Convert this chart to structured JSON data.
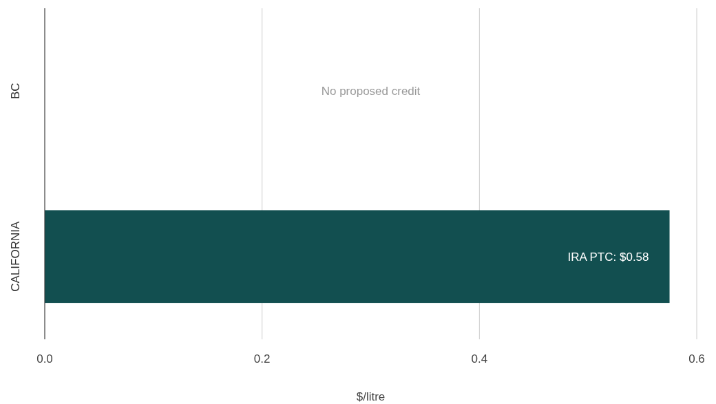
{
  "chart_data": {
    "type": "bar",
    "orientation": "horizontal",
    "categories": [
      "BC",
      "CALIFORNIA"
    ],
    "values": [
      null,
      0.575
    ],
    "value_labels": [
      null,
      "IRA PTC: $0.58"
    ],
    "color": "#124f50",
    "xlim": [
      0,
      0.6
    ],
    "xticks": [
      {
        "value": 0,
        "label": "0.0"
      },
      {
        "value": 0.2,
        "label": "0.2"
      },
      {
        "value": 0.4,
        "label": "0.4"
      },
      {
        "value": 0.6,
        "label": "0.6"
      }
    ],
    "xlabel": "$/litre",
    "grid": "x",
    "annotations": [
      "No proposed credit"
    ]
  }
}
